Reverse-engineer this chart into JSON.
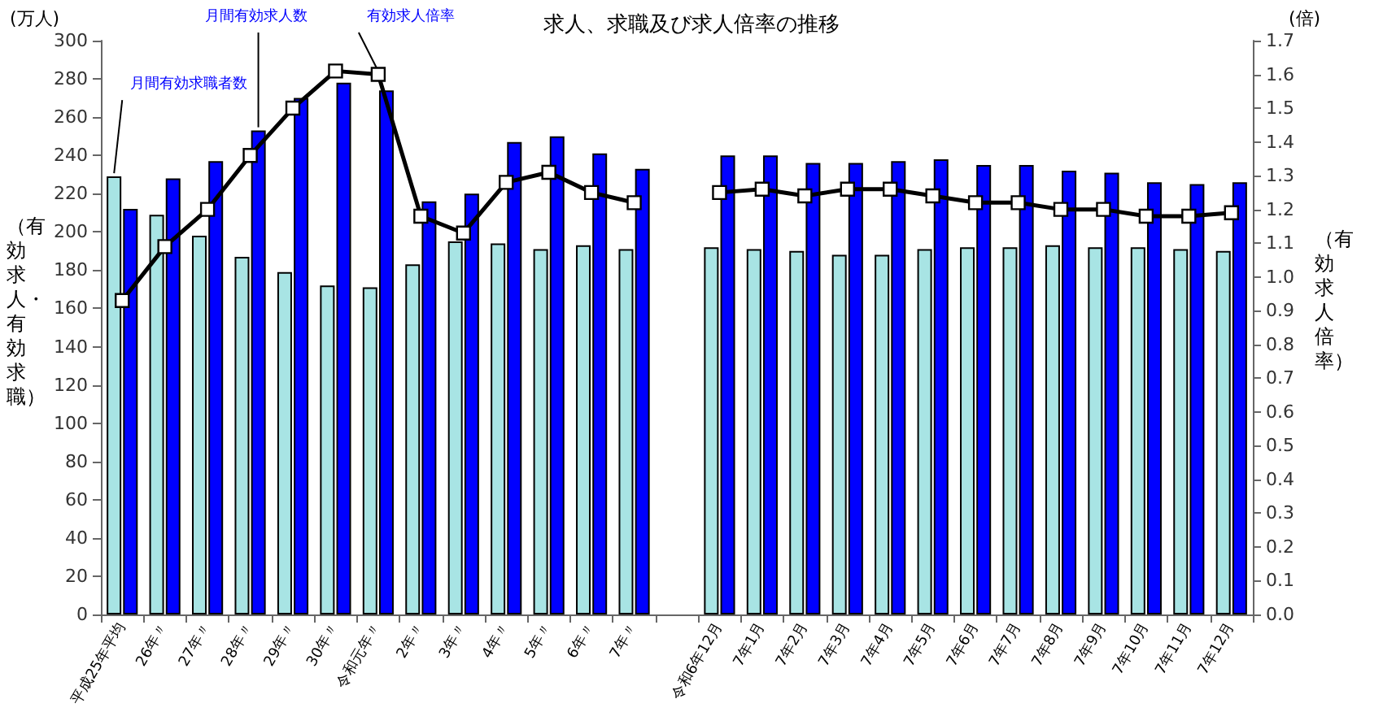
{
  "chart_data": {
    "type": "bar",
    "title": "求人、求職及び求人倍率の推移",
    "ylabel": "（有効求人・有効求職）",
    "y2label": "（有効求人倍率）",
    "annotations": [
      "(万人)",
      "(倍)"
    ],
    "categories": [
      "平成25年平均",
      "26年〃",
      "27年〃",
      "28年〃",
      "29年〃",
      "30年〃",
      "令和元年〃",
      "2年〃",
      "3年〃",
      "4年〃",
      "5年〃",
      "6年〃",
      "7年〃",
      null,
      "令和6年12月",
      "7年1月",
      "7年2月",
      "7年3月",
      "7年4月",
      "7年5月",
      "7年6月",
      "7年7月",
      "7年8月",
      "7年9月",
      "7年10月",
      "7年11月",
      "7年12月"
    ],
    "series": [
      {
        "name": "月間有効求職者数",
        "color": "#a8e4e4",
        "values": [
          229,
          209,
          198,
          187,
          179,
          172,
          171,
          183,
          195,
          194,
          191,
          193,
          191,
          null,
          192,
          191,
          190,
          188,
          188,
          191,
          192,
          192,
          193,
          192,
          192,
          191,
          190
        ]
      },
      {
        "name": "月間有効求人数",
        "color": "#0000ff",
        "values": [
          212,
          228,
          237,
          253,
          270,
          278,
          274,
          216,
          220,
          247,
          250,
          241,
          233,
          null,
          240,
          240,
          236,
          236,
          237,
          238,
          235,
          235,
          232,
          231,
          226,
          225,
          226
        ]
      },
      {
        "name": "有効求人倍率",
        "type": "line",
        "axis": "y2",
        "color": "#000000",
        "values": [
          0.93,
          1.09,
          1.2,
          1.36,
          1.5,
          1.61,
          1.6,
          1.18,
          1.13,
          1.28,
          1.31,
          1.25,
          1.22,
          null,
          1.25,
          1.26,
          1.24,
          1.26,
          1.26,
          1.24,
          1.22,
          1.22,
          1.2,
          1.2,
          1.18,
          1.18,
          1.19
        ]
      }
    ],
    "ylim": [
      0,
      300
    ],
    "yticks": [
      0,
      20,
      40,
      60,
      80,
      100,
      120,
      140,
      160,
      180,
      200,
      220,
      240,
      260,
      280,
      300
    ],
    "y2lim": [
      0,
      1.7
    ],
    "y2ticks": [
      {
        "value": 0,
        "label": "0.0"
      },
      0.1,
      0.2,
      0.3,
      0.4,
      0.5,
      0.6,
      0.7,
      0.8,
      0.9,
      {
        "value": 1,
        "label": "1.0"
      },
      1.1,
      1.2,
      1.3,
      1.4,
      1.5,
      1.6,
      1.7
    ],
    "grid": false,
    "legend": false,
    "marker": "square",
    "line_style": "solid"
  }
}
